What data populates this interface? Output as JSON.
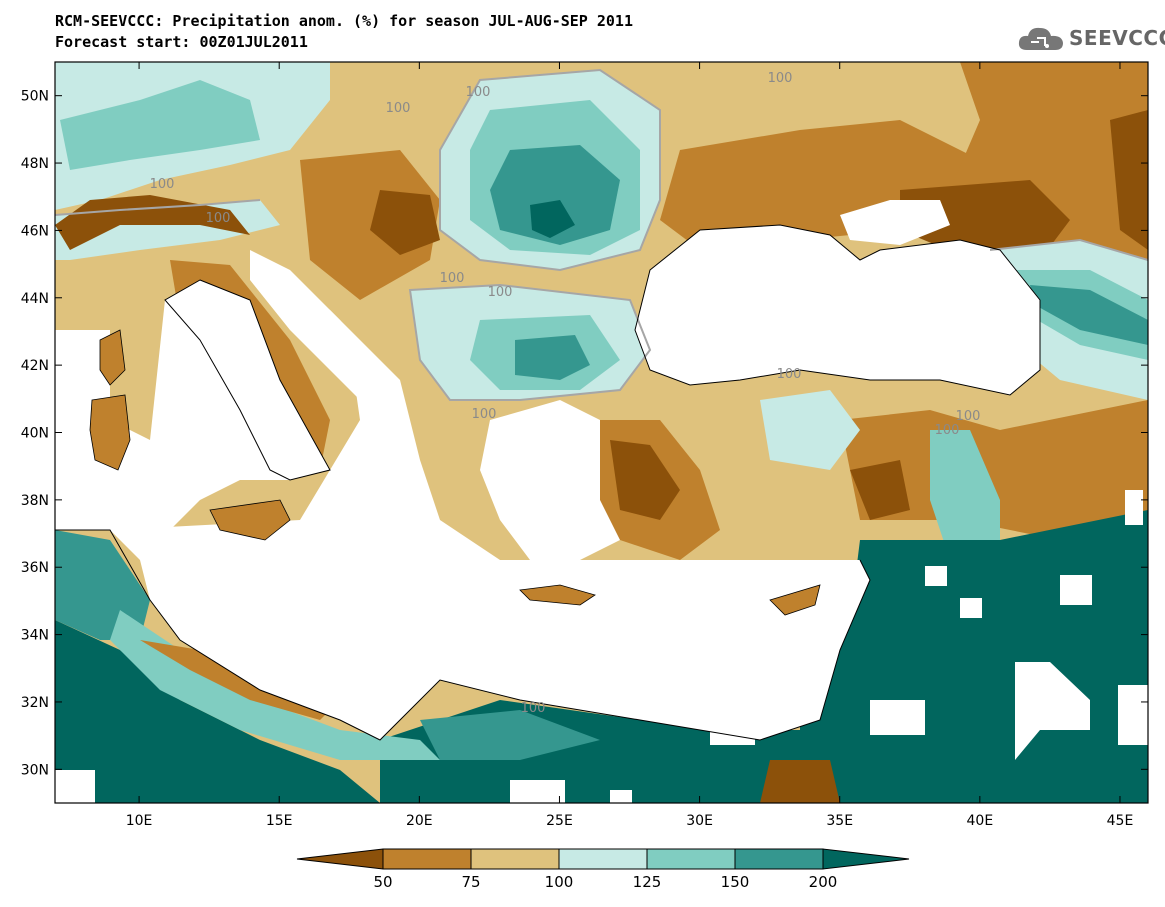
{
  "title_line1": "RCM-SEEVCCC: Precipitation anom. (%) for season JUL-AUG-SEP 2011",
  "title_line2": "Forecast start: 00Z01JUL2011",
  "logo_text": "SEEVCCC",
  "map": {
    "x_ticks": [
      "10E",
      "15E",
      "20E",
      "25E",
      "30E",
      "35E",
      "40E",
      "45E"
    ],
    "y_ticks": [
      "50N",
      "48N",
      "46N",
      "44N",
      "42N",
      "40N",
      "38N",
      "36N",
      "34N",
      "32N",
      "30N"
    ],
    "contour_label": "100",
    "lon_range": [
      7,
      46
    ],
    "lat_range": [
      29,
      51
    ]
  },
  "colorbar": {
    "labels": [
      "50",
      "75",
      "100",
      "125",
      "150",
      "200"
    ],
    "colors": [
      "#8c510a",
      "#bf812d",
      "#dfc27d",
      "#c7eae5",
      "#80cdc1",
      "#35978f",
      "#01665e"
    ]
  },
  "colors": {
    "land_default": "#dfc27d",
    "sea": "#ffffff",
    "contour": "#a6a6a6"
  }
}
